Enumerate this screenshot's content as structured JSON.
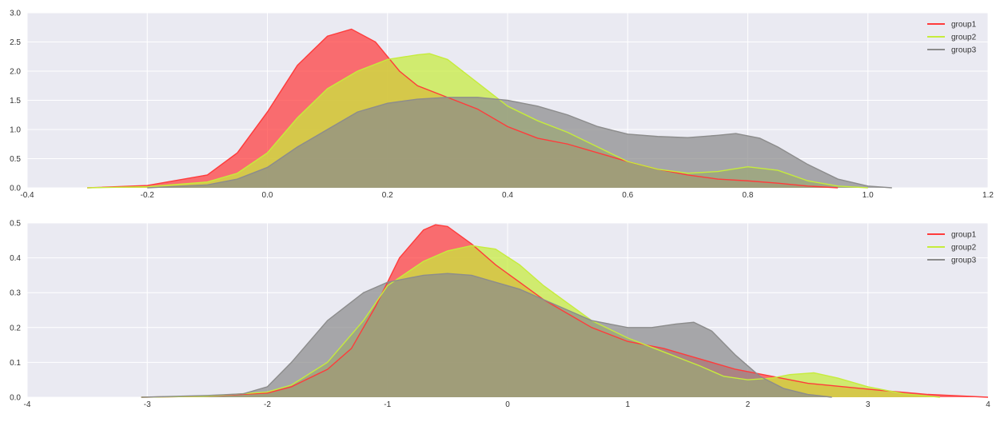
{
  "chart_data": [
    {
      "type": "area",
      "title": "",
      "xlabel": "",
      "ylabel": "",
      "xlim": [
        -0.4,
        1.2
      ],
      "ylim": [
        0,
        3.0
      ],
      "xticks": [
        -0.4,
        -0.2,
        0.0,
        0.2,
        0.4,
        0.6,
        0.8,
        1.0,
        1.2
      ],
      "xtick_labels": [
        "-0.4",
        "-0.2",
        "0.0",
        "0.2",
        "0.4",
        "0.6",
        "0.8",
        "1.0",
        "1.2"
      ],
      "yticks": [
        0,
        0.5,
        1.0,
        1.5,
        2.0,
        2.5,
        3.0
      ],
      "ytick_labels": [
        "0.0",
        "0.5",
        "1.0",
        "1.5",
        "2.0",
        "2.5",
        "3.0"
      ],
      "grid": true,
      "legend_position": "top-right",
      "series": [
        {
          "name": "group1",
          "color": "#ff3b3b",
          "x": [
            -0.3,
            -0.2,
            -0.1,
            -0.05,
            0.0,
            0.05,
            0.1,
            0.14,
            0.18,
            0.22,
            0.25,
            0.3,
            0.35,
            0.4,
            0.45,
            0.5,
            0.55,
            0.6,
            0.65,
            0.7,
            0.75,
            0.8,
            0.85,
            0.9,
            0.95
          ],
          "y": [
            0.0,
            0.04,
            0.22,
            0.6,
            1.3,
            2.1,
            2.6,
            2.72,
            2.5,
            2.0,
            1.75,
            1.55,
            1.35,
            1.05,
            0.85,
            0.75,
            0.6,
            0.45,
            0.32,
            0.22,
            0.15,
            0.12,
            0.08,
            0.03,
            0.0
          ]
        },
        {
          "name": "group2",
          "color": "#c6ec3c",
          "x": [
            -0.3,
            -0.2,
            -0.1,
            -0.05,
            0.0,
            0.05,
            0.1,
            0.15,
            0.2,
            0.25,
            0.27,
            0.3,
            0.35,
            0.4,
            0.45,
            0.5,
            0.55,
            0.6,
            0.65,
            0.7,
            0.75,
            0.8,
            0.85,
            0.9,
            0.95,
            1.0
          ],
          "y": [
            0.0,
            0.02,
            0.1,
            0.25,
            0.6,
            1.2,
            1.7,
            2.0,
            2.2,
            2.28,
            2.3,
            2.2,
            1.8,
            1.4,
            1.15,
            0.95,
            0.7,
            0.45,
            0.32,
            0.25,
            0.28,
            0.36,
            0.3,
            0.12,
            0.03,
            0.0
          ]
        },
        {
          "name": "group3",
          "color": "#8c8c8c",
          "x": [
            -0.2,
            -0.1,
            -0.05,
            0.0,
            0.05,
            0.1,
            0.15,
            0.2,
            0.25,
            0.3,
            0.35,
            0.4,
            0.45,
            0.5,
            0.55,
            0.6,
            0.65,
            0.7,
            0.75,
            0.78,
            0.82,
            0.85,
            0.9,
            0.95,
            1.0,
            1.04
          ],
          "y": [
            0.0,
            0.05,
            0.15,
            0.35,
            0.7,
            1.0,
            1.3,
            1.45,
            1.52,
            1.55,
            1.55,
            1.5,
            1.4,
            1.25,
            1.05,
            0.92,
            0.88,
            0.86,
            0.9,
            0.93,
            0.85,
            0.7,
            0.4,
            0.15,
            0.03,
            0.0
          ]
        }
      ]
    },
    {
      "type": "area",
      "title": "",
      "xlabel": "",
      "ylabel": "",
      "xlim": [
        -4,
        4
      ],
      "ylim": [
        0,
        0.5
      ],
      "xticks": [
        -4,
        -3,
        -2,
        -1,
        0,
        1,
        2,
        3,
        4
      ],
      "xtick_labels": [
        "-4",
        "-3",
        "-2",
        "-1",
        "0",
        "1",
        "2",
        "3",
        "4"
      ],
      "yticks": [
        0,
        0.1,
        0.2,
        0.3,
        0.4,
        0.5
      ],
      "ytick_labels": [
        "0.0",
        "0.1",
        "0.2",
        "0.3",
        "0.4",
        "0.5"
      ],
      "grid": true,
      "legend_position": "top-right",
      "series": [
        {
          "name": "group1",
          "color": "#ff3b3b",
          "x": [
            -3.05,
            -2.5,
            -2.0,
            -1.8,
            -1.5,
            -1.3,
            -1.1,
            -0.9,
            -0.7,
            -0.6,
            -0.5,
            -0.3,
            -0.1,
            0.1,
            0.3,
            0.5,
            0.7,
            1.0,
            1.3,
            1.6,
            1.9,
            2.2,
            2.5,
            2.8,
            3.1,
            3.5,
            4.0
          ],
          "y": [
            0.0,
            0.003,
            0.012,
            0.03,
            0.08,
            0.14,
            0.26,
            0.4,
            0.48,
            0.495,
            0.49,
            0.44,
            0.38,
            0.33,
            0.28,
            0.24,
            0.2,
            0.16,
            0.14,
            0.11,
            0.08,
            0.06,
            0.04,
            0.03,
            0.02,
            0.008,
            0.0
          ]
        },
        {
          "name": "group2",
          "color": "#c6ec3c",
          "x": [
            -3.05,
            -2.5,
            -2.0,
            -1.8,
            -1.5,
            -1.2,
            -1.0,
            -0.7,
            -0.5,
            -0.3,
            -0.1,
            0.1,
            0.3,
            0.5,
            0.7,
            1.0,
            1.3,
            1.6,
            1.8,
            2.0,
            2.2,
            2.35,
            2.55,
            2.75,
            3.0,
            3.3,
            3.6
          ],
          "y": [
            0.0,
            0.003,
            0.015,
            0.035,
            0.1,
            0.22,
            0.32,
            0.39,
            0.42,
            0.435,
            0.425,
            0.38,
            0.32,
            0.27,
            0.22,
            0.17,
            0.13,
            0.09,
            0.06,
            0.05,
            0.055,
            0.065,
            0.07,
            0.055,
            0.03,
            0.01,
            0.0
          ]
        },
        {
          "name": "group3",
          "color": "#8c8c8c",
          "x": [
            -3.05,
            -2.5,
            -2.2,
            -2.0,
            -1.8,
            -1.5,
            -1.2,
            -1.0,
            -0.7,
            -0.5,
            -0.3,
            -0.1,
            0.1,
            0.3,
            0.5,
            0.7,
            1.0,
            1.2,
            1.4,
            1.55,
            1.7,
            1.9,
            2.1,
            2.3,
            2.5,
            2.7
          ],
          "y": [
            0.0,
            0.005,
            0.01,
            0.03,
            0.1,
            0.22,
            0.3,
            0.33,
            0.35,
            0.355,
            0.35,
            0.33,
            0.31,
            0.28,
            0.25,
            0.22,
            0.2,
            0.2,
            0.21,
            0.215,
            0.19,
            0.12,
            0.06,
            0.025,
            0.008,
            0.0
          ]
        }
      ]
    }
  ]
}
